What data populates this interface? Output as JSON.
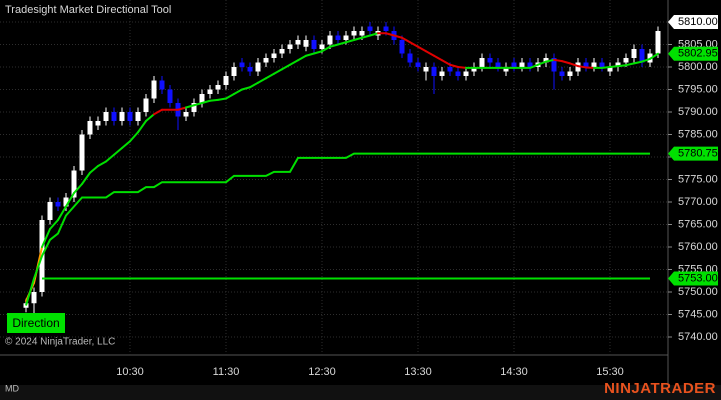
{
  "title": "Tradesight Market Directional Tool",
  "chart_data": {
    "type": "candlestick",
    "categories": [
      null,
      null,
      null,
      null,
      null,
      null,
      null,
      null,
      null,
      null,
      null,
      null,
      null,
      "10:30",
      null,
      null,
      null,
      null,
      null,
      null,
      null,
      null,
      null,
      null,
      null,
      "11:30",
      null,
      null,
      null,
      null,
      null,
      null,
      null,
      null,
      null,
      null,
      null,
      "12:30",
      null,
      null,
      null,
      null,
      null,
      null,
      null,
      null,
      null,
      null,
      null,
      "13:30",
      null,
      null,
      null,
      null,
      null,
      null,
      null,
      null,
      null,
      null,
      null,
      "14:30",
      null,
      null,
      null,
      null,
      null,
      null,
      null,
      null,
      null,
      null,
      null,
      "15:30",
      null,
      null,
      null,
      null,
      null,
      null
    ],
    "open": [
      5746.5,
      5747.5,
      5750,
      5766,
      5770,
      5769,
      5771,
      5777,
      5785,
      5787,
      5788,
      5790,
      5788,
      5790,
      5788,
      5790,
      5793,
      5797,
      5795,
      5792,
      5789,
      5790,
      5792,
      5794,
      5795,
      5796,
      5798,
      5801,
      5800,
      5799,
      5801,
      5802,
      5803,
      5804,
      5805,
      5804.5,
      5806,
      5804,
      5805,
      5807,
      5806,
      5807,
      5807,
      5809,
      5807,
      5809,
      5808,
      5806,
      5803,
      5801,
      5799,
      5800,
      5798,
      5800,
      5799,
      5798,
      5799,
      5800,
      5802,
      5801,
      5799,
      5801,
      5800,
      5801,
      5800,
      5801,
      5802,
      5799,
      5798,
      5799,
      5801,
      5800,
      5801,
      5799,
      5800,
      5801,
      5802,
      5804,
      5801,
      5803
    ],
    "high": [
      5748.5,
      5751,
      5767,
      5771,
      5771,
      5772,
      5778,
      5786,
      5789,
      5789,
      5791,
      5791,
      5791,
      5791,
      5791,
      5794,
      5798,
      5798,
      5796,
      5793,
      5791,
      5793,
      5795,
      5796,
      5797,
      5799,
      5801,
      5802,
      5801,
      5802,
      5803,
      5804,
      5805,
      5806,
      5807,
      5807,
      5807,
      5806,
      5808,
      5808,
      5808,
      5809,
      5809,
      5810,
      5809,
      5810,
      5809,
      5807,
      5804,
      5802,
      5801,
      5801,
      5800,
      5801,
      5800,
      5800,
      5801,
      5803,
      5803,
      5802,
      5801,
      5802,
      5802,
      5802,
      5802,
      5803,
      5803,
      5800,
      5800,
      5802,
      5802,
      5802,
      5802,
      5801,
      5802,
      5803,
      5805,
      5805,
      5804,
      5809
    ],
    "low": [
      5745.5,
      5745,
      5749,
      5765,
      5768,
      5768,
      5770,
      5776,
      5784,
      5786,
      5787,
      5787,
      5787,
      5787,
      5787,
      5789,
      5792,
      5794,
      5791,
      5786,
      5788,
      5789,
      5791,
      5793,
      5794,
      5795,
      5797,
      5799,
      5798,
      5798,
      5800,
      5801,
      5802,
      5803,
      5804,
      5803.5,
      5803,
      5803,
      5804,
      5805,
      5805,
      5806,
      5806,
      5807,
      5806,
      5807,
      5805,
      5802,
      5800,
      5799,
      5797,
      5794,
      5797,
      5798,
      5797,
      5797,
      5798,
      5799,
      5800,
      5799,
      5798,
      5799,
      5799,
      5799,
      5799,
      5800,
      5795,
      5797,
      5797,
      5798,
      5799,
      5799,
      5799,
      5798,
      5799,
      5800,
      5801,
      5800,
      5800,
      5802
    ],
    "close": [
      5747.5,
      5750,
      5766,
      5770,
      5769,
      5771,
      5777,
      5785,
      5788,
      5788,
      5790,
      5788,
      5790,
      5788,
      5790,
      5793,
      5797,
      5795,
      5792,
      5789,
      5790,
      5792,
      5794,
      5795,
      5796,
      5798,
      5800,
      5800,
      5799,
      5801,
      5802,
      5803,
      5804,
      5805,
      5806,
      5806,
      5804,
      5805,
      5807,
      5806,
      5807,
      5808,
      5808,
      5808,
      5808,
      5808,
      5806,
      5803,
      5801,
      5800,
      5800,
      5798,
      5799,
      5799,
      5798,
      5799,
      5800,
      5802,
      5801,
      5800,
      5800,
      5800,
      5801,
      5800,
      5801,
      5802,
      5799,
      5798,
      5799,
      5801,
      5800,
      5801,
      5800,
      5800,
      5801,
      5802,
      5804,
      5801,
      5803,
      5808
    ],
    "up_color": "#ffffff",
    "down_color": "#1010ff",
    "ylim": [
      5736,
      5812
    ],
    "yticks": [
      {
        "value": 5740,
        "label": "5740.00"
      },
      {
        "value": 5745,
        "label": "5745.00"
      },
      {
        "value": 5750,
        "label": "5750.00"
      },
      {
        "value": 5755,
        "label": "5755.00"
      },
      {
        "value": 5760,
        "label": "5760.00"
      },
      {
        "value": 5765,
        "label": "5765.00"
      },
      {
        "value": 5770,
        "label": "5770.00"
      },
      {
        "value": 5775,
        "label": "5775.00"
      },
      {
        "value": 5780,
        "label": "5780.00"
      },
      {
        "value": 5785,
        "label": "5785.00"
      },
      {
        "value": 5790,
        "label": "5790.00"
      },
      {
        "value": 5795,
        "label": "5795.00"
      },
      {
        "value": 5800,
        "label": "5800.00"
      },
      {
        "value": 5805,
        "label": "5805.00"
      },
      {
        "value": 5810,
        "label": "5810.00"
      }
    ],
    "grid": true,
    "series": [
      {
        "values": [
          5748,
          5752,
          5760,
          5764,
          5766,
          5769,
          5772,
          5774,
          5776.5,
          5778,
          5779,
          5780.5,
          5782,
          5783.5,
          5785.5,
          5788,
          5789.5,
          5790.5,
          5790.5,
          5790.5,
          5791,
          5791.5,
          5792,
          5792.5,
          5792.7,
          5793,
          5794,
          5795,
          5795.5,
          5796.5,
          5797.5,
          5798.5,
          5799.5,
          5800.5,
          5801.5,
          5802.5,
          5803,
          5803.5,
          5804.5,
          5805,
          5805.5,
          5806,
          5806.5,
          5807,
          5807.5,
          5807.5,
          5807,
          5806.5,
          5805.5,
          5804.5,
          5803.5,
          5802.5,
          5801.5,
          5800.5,
          5800,
          5799.8,
          5799.8,
          5799.8,
          5799.8,
          5799.8,
          5799.8,
          5799.8,
          5799.8,
          5799.8,
          5800.5,
          5801.2,
          5801.6,
          5801.3,
          5800.8,
          5800.2,
          5799.9,
          5799.8,
          5799.8,
          5800,
          5800.2,
          5800.4,
          5800.8,
          5801.2,
          5801.8,
          5802.95
        ],
        "colors": [
          "#ff9900",
          "#ff9900",
          "#00e000",
          "#00e000",
          "#00e000",
          "#00e000",
          "#00e000",
          "#00e000",
          "#00e000",
          "#00e000",
          "#00e000",
          "#00e000",
          "#00e000",
          "#00e000",
          "#00e000",
          "#00e000",
          "#e00000",
          "#e00000",
          "#e00000",
          "#e00000",
          "#00e000",
          "#00e000",
          "#00e000",
          "#00e000",
          "#00e000",
          "#00e000",
          "#00e000",
          "#00e000",
          "#00e000",
          "#00e000",
          "#00e000",
          "#00e000",
          "#00e000",
          "#00e000",
          "#00e000",
          "#00e000",
          "#00e000",
          "#00e000",
          "#00e000",
          "#00e000",
          "#00e000",
          "#00e000",
          "#00e000",
          "#00e000",
          "#e00000",
          "#e00000",
          "#e00000",
          "#e00000",
          "#e00000",
          "#e00000",
          "#e00000",
          "#e00000",
          "#e00000",
          "#e00000",
          "#e00000",
          "#00e000",
          "#00e000",
          "#00e000",
          "#00e000",
          "#00e000",
          "#00e000",
          "#00e000",
          "#00e000",
          "#00e000",
          "#00e000",
          "#00e000",
          "#e00000",
          "#e00000",
          "#e00000",
          "#e00000",
          "#e00000",
          "#00e000",
          "#00e000",
          "#00e000",
          "#00e000",
          "#00e000",
          "#00e000",
          "#00e000",
          "#00e000",
          "#00e000"
        ]
      },
      {
        "values": [
          5747,
          5753,
          5758,
          5761.6,
          5763,
          5767,
          5769,
          5771,
          5771,
          5771,
          5771,
          5772.2,
          5772.2,
          5772.2,
          5772.2,
          5773.3,
          5773.3,
          5774.4,
          5774.4,
          5774.4,
          5774.4,
          5774.4,
          5774.4,
          5774.4,
          5774.4,
          5774.4,
          5775.8,
          5775.8,
          5775.8,
          5775.8,
          5775.8,
          5776.7,
          5776.7,
          5776.7,
          5779.8,
          5779.8,
          5779.8,
          5779.8,
          5779.8,
          5779.8,
          5779.8,
          5780.75,
          5780.75,
          5780.75,
          5780.75,
          5780.75,
          5780.75,
          5780.75,
          5780.75,
          5780.75,
          5780.75,
          5780.75,
          5780.75,
          5780.75,
          5780.75,
          5780.75,
          5780.75,
          5780.75,
          5780.75,
          5780.75,
          5780.75,
          5780.75,
          5780.75,
          5780.75,
          5780.75,
          5780.75,
          5780.75,
          5780.75,
          5780.75,
          5780.75,
          5780.75,
          5780.75,
          5780.75,
          5780.75,
          5780.75,
          5780.75,
          5780.75,
          5780.75,
          5780.75,
          null
        ],
        "color": "#00e000"
      },
      {
        "values": [
          null,
          null,
          5753,
          5753,
          5753,
          5753,
          5753,
          5753,
          5753,
          5753,
          5753,
          5753,
          5753,
          5753,
          5753,
          5753,
          5753,
          5753,
          5753,
          5753,
          5753,
          5753,
          5753,
          5753,
          5753,
          5753,
          5753,
          5753,
          5753,
          5753,
          5753,
          5753,
          5753,
          5753,
          5753,
          5753,
          5753,
          5753,
          5753,
          5753,
          5753,
          5753,
          5753,
          5753,
          5753,
          5753,
          5753,
          5753,
          5753,
          5753,
          5753,
          5753,
          5753,
          5753,
          5753,
          5753,
          5753,
          5753,
          5753,
          5753,
          5753,
          5753,
          5753,
          5753,
          5753,
          5753,
          5753,
          5753,
          5753,
          5753,
          5753,
          5753,
          5753,
          5753,
          5753,
          5753,
          5753,
          5753,
          5753,
          null
        ],
        "color": "#00e000"
      }
    ],
    "price_markers": [
      {
        "value": 5810,
        "label": "5810.00",
        "color": "#ffffff"
      },
      {
        "value": 5802.95,
        "label": "5802.95",
        "color": "#00e000"
      },
      {
        "value": 5780.75,
        "label": "5780.75",
        "color": "#00e000"
      },
      {
        "value": 5753,
        "label": "5753.00",
        "color": "#00e000"
      }
    ]
  },
  "button": "Direction",
  "copyright": "© 2024 NinjaTrader, LLC",
  "status": "MD",
  "logo": "NINJATRADER"
}
